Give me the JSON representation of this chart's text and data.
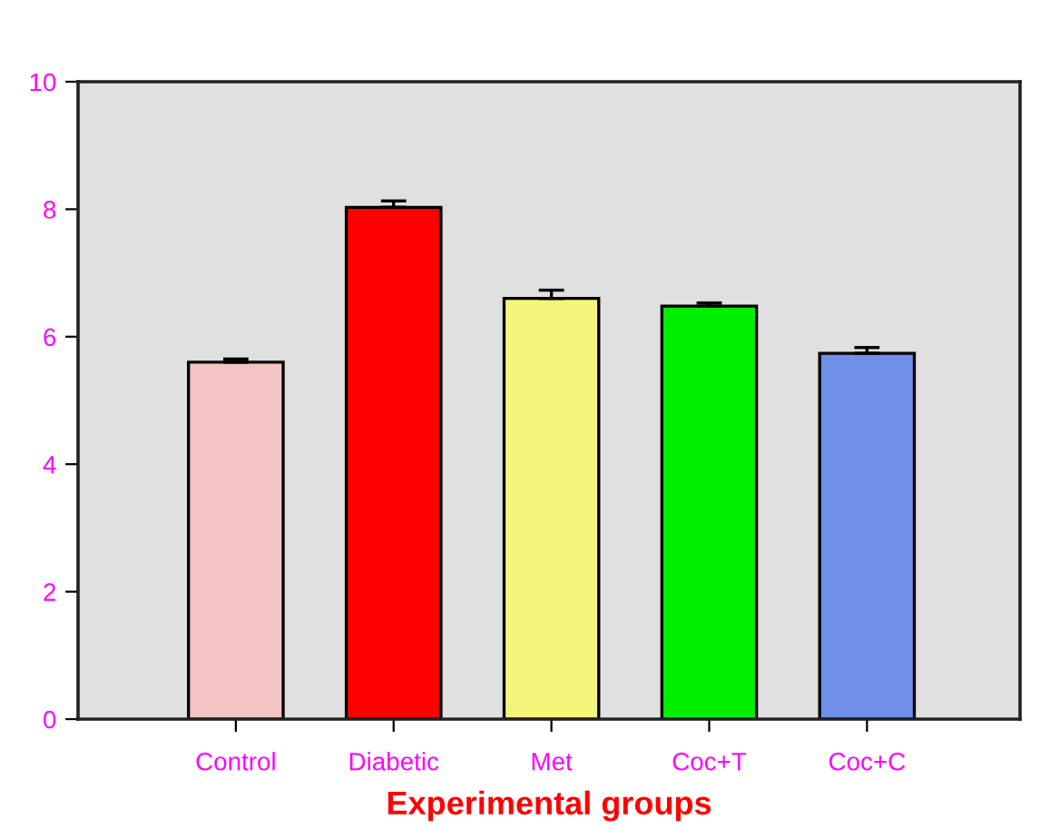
{
  "chart_data": {
    "type": "bar",
    "xlabel": "Experimental groups",
    "categories": [
      "Control",
      "Diabetic",
      "Met",
      "Coc+T",
      "Coc+C"
    ],
    "values": [
      5.6,
      8.03,
      6.6,
      6.48,
      5.74
    ],
    "colors": [
      "#f4c4c4",
      "#ff0000",
      "#f4f47a",
      "#00ee00",
      "#6f8fe8"
    ],
    "errors": [
      [
        5.6,
        5.65
      ],
      [
        8.03,
        8.13
      ],
      [
        6.6,
        6.73
      ],
      [
        6.48,
        6.53
      ],
      [
        5.74,
        5.83
      ]
    ],
    "ylim": [
      0,
      10
    ],
    "yticks": [
      0,
      2,
      4,
      6,
      8,
      10
    ],
    "grid": false
  }
}
